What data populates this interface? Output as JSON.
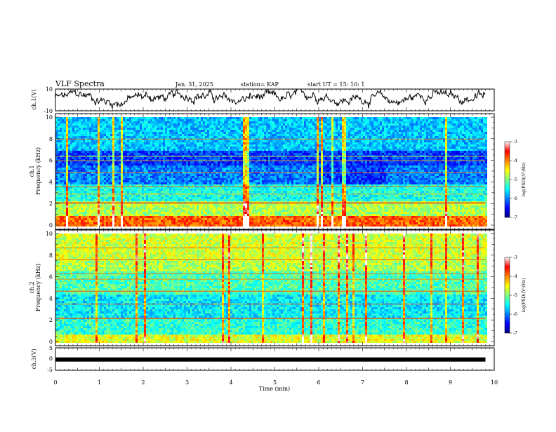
{
  "header": {
    "title": "VLF Spectra",
    "date": "Jan. 31, 2025",
    "station": "station= KAP",
    "start_ut": "start  UT =   15: 10: 1"
  },
  "chart_data": [
    {
      "type": "line",
      "panel": "ch1-waveform",
      "ylabel": "ch.1(V)",
      "ylim": [
        -10,
        10
      ],
      "ytick_labels": [
        "10",
        "-10"
      ],
      "description_values": "voltage fluctuating roughly between -10 and 10 V over ~9.8 min"
    },
    {
      "type": "heatmap",
      "panel": "ch1-spectrogram",
      "ylabel_line1": "ch.1",
      "ylabel_line2": "Frequency (kHz)",
      "ylim": [
        0,
        10
      ],
      "ytick_labels": [
        "0",
        "2",
        "4",
        "6",
        "8",
        "10"
      ],
      "colorbar": {
        "label": "log(PSD)(V²/Hz)",
        "range": [
          -7,
          -3
        ],
        "tick_labels": [
          "-3",
          "-4",
          "-5",
          "-6",
          "-7"
        ]
      }
    },
    {
      "type": "heatmap",
      "panel": "ch2-spectrogram",
      "ylabel_line1": "ch.2",
      "ylabel_line2": "Frequency (kHz)",
      "ylim": [
        0,
        10
      ],
      "ytick_labels": [
        "0",
        "2",
        "4",
        "6",
        "8",
        "10"
      ],
      "colorbar": {
        "label": "log(PSD)(V²/Hz)",
        "range": [
          -7,
          -3
        ],
        "tick_labels": [
          "-3",
          "-4",
          "-5",
          "-6",
          "-7"
        ]
      }
    },
    {
      "type": "line",
      "panel": "ch3-waveform",
      "ylabel": "ch.3(V)",
      "ylim": [
        -5,
        5
      ],
      "ytick_labels": [
        "5",
        "0",
        "-5"
      ],
      "level": -0.2
    }
  ],
  "x_axis": {
    "xlabel": "Time (min)",
    "xlim": [
      0,
      10
    ],
    "data_end": 9.8,
    "tick_labels": [
      "0",
      "1",
      "2",
      "3",
      "4",
      "5",
      "6",
      "7",
      "8",
      "9",
      "10"
    ]
  },
  "colors": {
    "ink": "#000000",
    "colormap": [
      "#00007f",
      "#0000ff",
      "#0080ff",
      "#00ffff",
      "#80ff80",
      "#ffff00",
      "#ff8000",
      "#ff0000",
      "#ffffff"
    ]
  }
}
